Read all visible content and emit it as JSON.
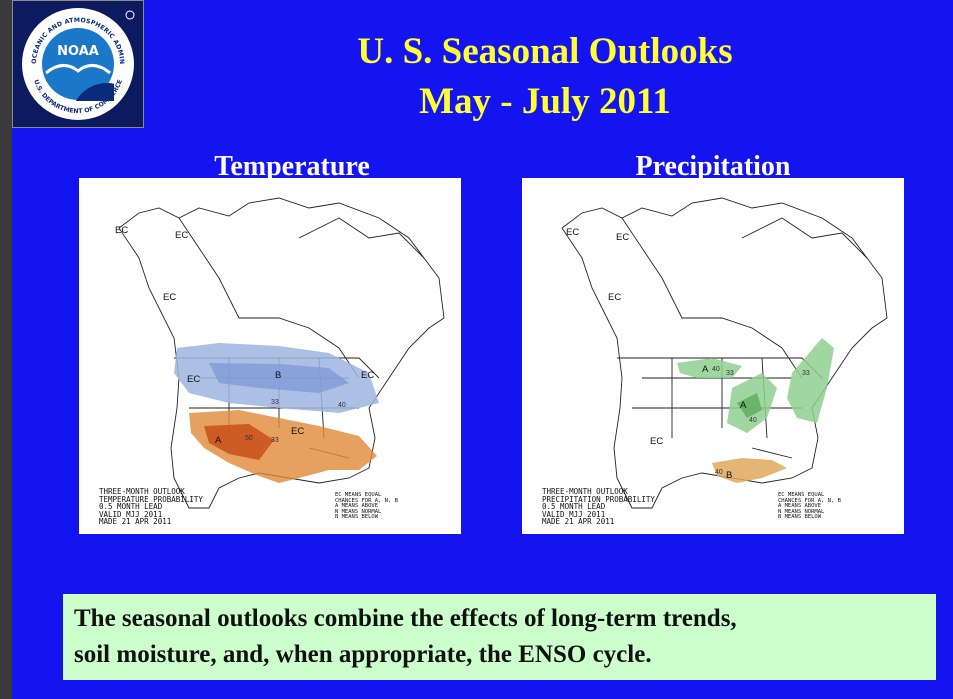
{
  "header": {
    "title_line1": "U. S. Seasonal Outlooks",
    "title_line2": "May - July 2011",
    "logo": {
      "center_text": "NOAA",
      "ring_top": "NATIONAL OCEANIC AND ATMOSPHERIC ADMINISTRATION",
      "ring_bottom": "U.S. DEPARTMENT OF COMMERCE"
    }
  },
  "panels": {
    "temperature": {
      "label": "Temperature",
      "map_labels": {
        "ec1": "EC",
        "ec2": "EC",
        "ec3": "EC",
        "ec4": "EC",
        "ec5": "EC",
        "ec6": "EC",
        "b": "B",
        "a": "A",
        "c33a": "33",
        "c40": "40",
        "c50": "50",
        "c33b": "33"
      },
      "legend": [
        "THREE-MONTH OUTLOOK",
        "TEMPERATURE PROBABILITY",
        "0.5 MONTH LEAD",
        "VALID MJJ 2011",
        "MADE 21 APR 2011"
      ],
      "key": [
        "EC MEANS EQUAL",
        "CHANCES FOR A, N, B",
        "A MEANS ABOVE",
        "N MEANS NORMAL",
        "B MEANS BELOW"
      ]
    },
    "precipitation": {
      "label": "Precipitation",
      "map_labels": {
        "ec1": "EC",
        "ec2": "EC",
        "ec3": "EC",
        "ec4": "EC",
        "a1": "A",
        "a2": "A",
        "b": "B",
        "c40a": "40",
        "c33a": "33",
        "c40b": "40",
        "c33b": "33",
        "c40c": "40"
      },
      "legend": [
        "THREE-MONTH OUTLOOK",
        "PRECIPITATION PROBABILITY",
        "0.5 MONTH LEAD",
        "VALID MJJ 2011",
        "MADE 21 APR 2011"
      ],
      "key": [
        "EC MEANS EQUAL",
        "CHANCES FOR A, N, B",
        "A MEANS ABOVE",
        "N MEANS NORMAL",
        "B MEANS BELOW"
      ]
    }
  },
  "caption": {
    "line1": "The seasonal outlooks combine the effects of long-term trends,",
    "line2": "soil moisture, and, when appropriate, the ENSO cycle."
  },
  "colors": {
    "background": "#1414f0",
    "title": "#ffff33",
    "below_normal_temp": "#9db5e0",
    "above_normal_temp": "#e08a3a",
    "above_normal_precip": "#8fd08f",
    "below_normal_precip": "#e0a85a",
    "caption_bg": "#ccffcc"
  }
}
